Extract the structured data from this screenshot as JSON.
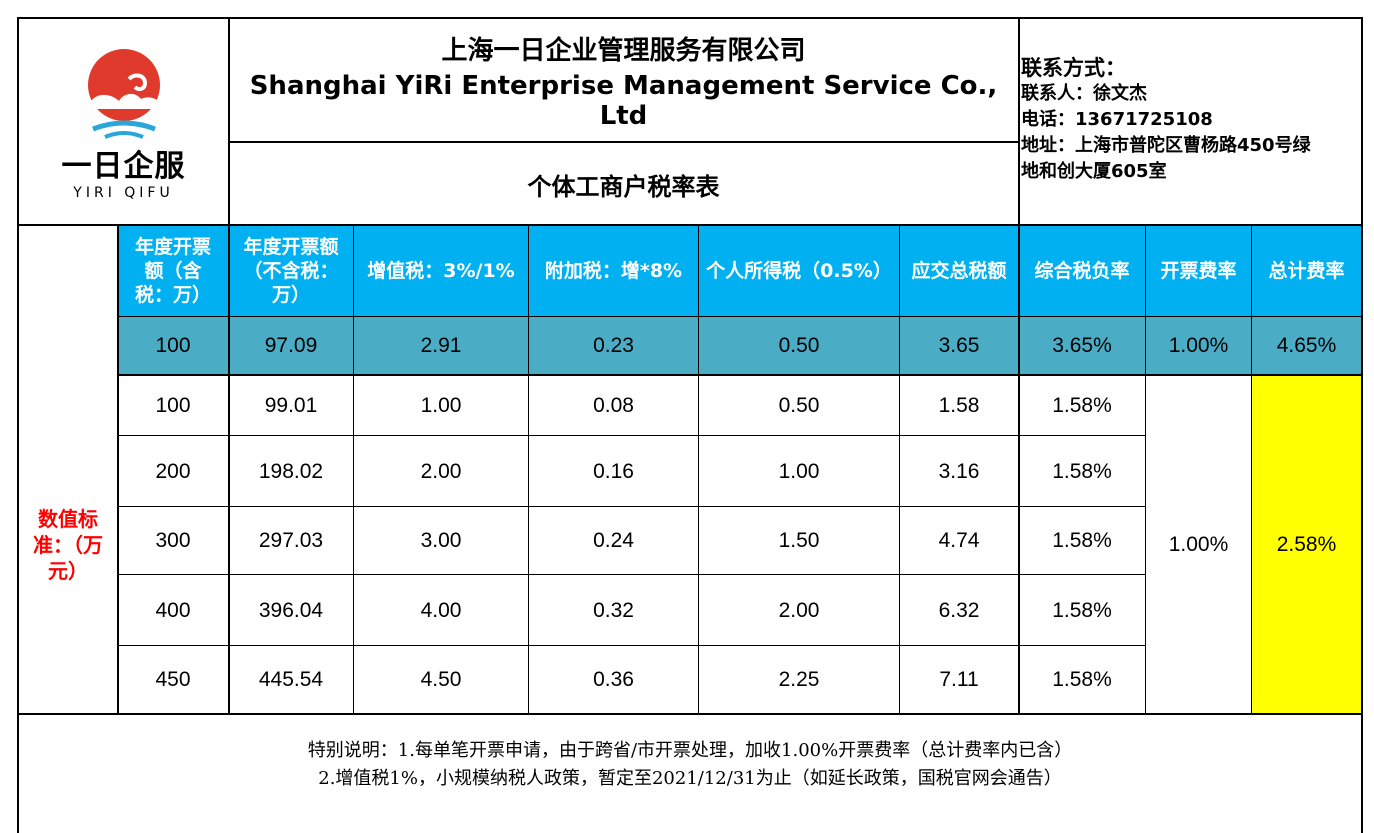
{
  "company": {
    "name_cn": "上海一日企业管理服务有限公司",
    "name_en": "Shanghai YiRi Enterprise Management Service Co., Ltd",
    "logo_cn": "一日企服",
    "logo_en": "YIRI QIFU"
  },
  "table_title": "个体工商户税率表",
  "contact": {
    "heading": "联系方式：",
    "person": "联系人：徐文杰",
    "phone": "电话：13671725108",
    "address_line1": "地址：上海市普陀区曹杨路450号绿",
    "address_line2": "地和创大厦605室"
  },
  "columns": [
    "年度开票额（含税：万）",
    "年度开票额（不含税：万）",
    "增值税：3%/1%",
    "附加税：增*8%",
    "个人所得税（0.5%）",
    "应交总税额",
    "综合税负率",
    "开票费率",
    "总计费率"
  ],
  "side_label": "数值标准：（万元）",
  "highlight_row": [
    "100",
    "97.09",
    "2.91",
    "0.23",
    "0.50",
    "3.65",
    "3.65%",
    "1.00%",
    "4.65%"
  ],
  "rows": [
    [
      "100",
      "99.01",
      "1.00",
      "0.08",
      "0.50",
      "1.58",
      "1.58%"
    ],
    [
      "200",
      "198.02",
      "2.00",
      "0.16",
      "1.00",
      "3.16",
      "1.58%"
    ],
    [
      "300",
      "297.03",
      "3.00",
      "0.24",
      "1.50",
      "4.74",
      "1.58%"
    ],
    [
      "400",
      "396.04",
      "4.00",
      "0.32",
      "2.00",
      "6.32",
      "1.58%"
    ],
    [
      "450",
      "445.54",
      "4.50",
      "0.36",
      "2.25",
      "7.11",
      "1.58%"
    ]
  ],
  "merged_invoice_rate": "1.00%",
  "merged_total_rate": "2.58%",
  "notes": {
    "line1": "特别说明：1.每单笔开票申请，由于跨省/市开票处理，加收1.00%开票费率（总计费率内已含）",
    "line2": "2.增值税1%，小规模纳税人政策，暂定至2021/12/31为止（如延长政策，国税官网会通告）"
  },
  "colors": {
    "header_bg": "#00b0f0",
    "highlight_bg": "#4bacc6",
    "total_bg": "#ffff00",
    "side_label": "#ff0000",
    "logo_red": "#e03a2c",
    "logo_blue": "#2aa7d8"
  }
}
